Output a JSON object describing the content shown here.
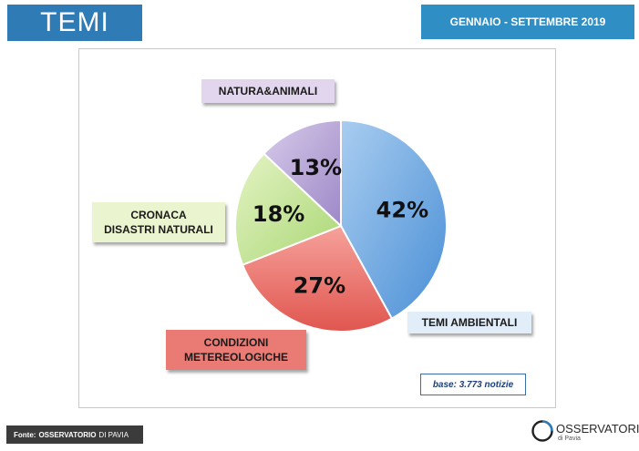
{
  "header": {
    "title": "TEMI",
    "period": "GENNAIO - SETTEMBRE 2019"
  },
  "chart_data": {
    "type": "pie",
    "slices": [
      {
        "label": "TEMI AMBIENTALI",
        "value": 42,
        "display": "42%",
        "color": "#5b9bd5"
      },
      {
        "label": "CONDIZIONI METEREOLOGICHE",
        "value": 27,
        "display": "27%",
        "color": "#e8706a"
      },
      {
        "label": "CRONACA DISASTRI NATURALI",
        "value": 18,
        "display": "18%",
        "color": "#c4e29a"
      },
      {
        "label": "NATURA&ANIMALI",
        "value": 13,
        "display": "13%",
        "color": "#b3a2d3"
      }
    ],
    "labels": {
      "natura": "NATURA&ANIMALI",
      "cronaca_line1": "CRONACA",
      "cronaca_line2": "DISASTRI NATURALI",
      "condizioni_line1": "CONDIZIONI",
      "condizioni_line2": "METEREOLOGICHE",
      "temi": "TEMI AMBIENTALI"
    },
    "note": "base: 3.773 notizie"
  },
  "footer": {
    "source_prefix": "Fonte:",
    "source_org": "OSSERVATORIO",
    "source_suffix": "DI PAVIA",
    "logo_name": "OSSERVATORIO",
    "logo_sub": "di Pavia"
  }
}
